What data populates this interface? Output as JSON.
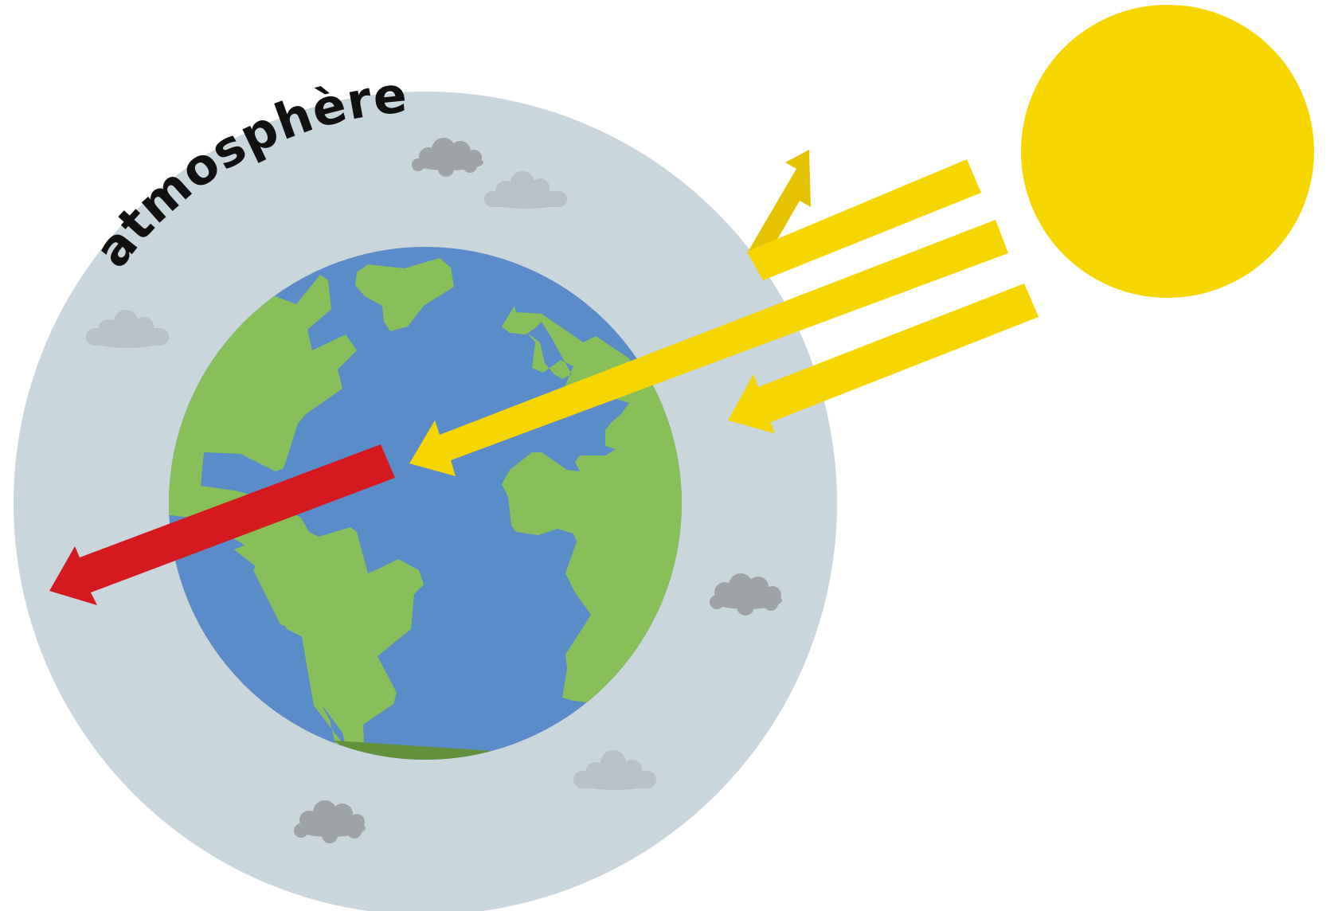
{
  "labels": {
    "atmosphere": "atmosphère"
  },
  "colors": {
    "background": "#ffffff",
    "atmosphere": "#c9d6dc",
    "ocean": "#5a8cca",
    "ocean_shadow": "#41689d",
    "land": "#87bf59",
    "land_shadow": "#62913c",
    "sun": "#f7d600",
    "incoming_ray": "#f7d600",
    "reflected_ray": "#e6c300",
    "emitted_ray": "#d51a1f",
    "cloud_dark": "#9ea3a6",
    "cloud_light": "#b8c0c8",
    "label_text": "#111111"
  },
  "elements": {
    "sun": "sun",
    "earth": "earth-globe",
    "atmosphere": "atmosphere-layer",
    "incoming_rays": 3,
    "reflected_rays": 1,
    "emitted_rays": 1,
    "clouds": 6
  }
}
